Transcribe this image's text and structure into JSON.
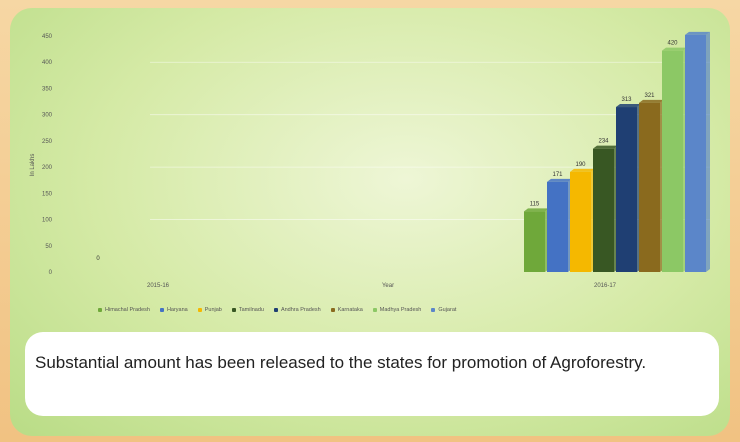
{
  "caption": "Substantial amount has been released to the states for promotion of Agroforestry.",
  "chart_data": {
    "type": "bar",
    "title": "",
    "xlabel": "Year",
    "ylabel": "In Lakhs",
    "categories": [
      "2015-16",
      "2016-17"
    ],
    "ylim": [
      0,
      950
    ],
    "yticks": [
      0,
      50,
      100,
      150,
      200,
      250,
      300,
      350,
      400,
      450
    ],
    "ytick_labels": [
      "0",
      "50",
      "100",
      "150",
      "200",
      "250",
      "300",
      "350",
      "400",
      "450"
    ],
    "legend_position": "bottom",
    "series": [
      {
        "name": "Himachal Pradesh",
        "color": "#6fa83a",
        "values": [
          0,
          115
        ]
      },
      {
        "name": "Haryana",
        "color": "#4472c4",
        "values": [
          0,
          171
        ]
      },
      {
        "name": "Punjab",
        "color": "#f5b800",
        "values": [
          0,
          190
        ]
      },
      {
        "name": "Tamilnadu",
        "color": "#385723",
        "values": [
          0,
          234
        ]
      },
      {
        "name": "Andhra Pradesh",
        "color": "#1f3f73",
        "values": [
          0,
          313
        ]
      },
      {
        "name": "Karnataka",
        "color": "#8a6a1e",
        "values": [
          0,
          321
        ]
      },
      {
        "name": "Madhya Pradesh",
        "color": "#8cc865",
        "values": [
          0,
          420
        ]
      },
      {
        "name": "Gujarat",
        "color": "#5b86c9",
        "values": [
          0,
          450
        ]
      }
    ],
    "data_labels_2016_17": [
      "115",
      "171",
      "190",
      "234",
      "313",
      "321",
      "420",
      ""
    ],
    "data_label_2015_16": "0"
  }
}
